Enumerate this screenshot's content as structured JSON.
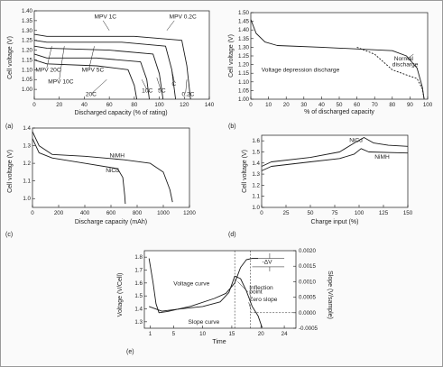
{
  "figure": {
    "border_color": "#9a9a9a",
    "background": "#fafafa",
    "line_color": "#1a1a1a"
  },
  "chart_data": [
    {
      "panel": "(a)",
      "type": "line",
      "ylabel": "Cell voltage (V)",
      "xlabel": "Discharged capacity (% of rating)",
      "xlim": [
        0,
        140
      ],
      "ylim": [
        0.95,
        1.4
      ],
      "xticks": [
        0,
        20,
        40,
        60,
        80,
        100,
        120,
        140
      ],
      "yticks": [
        1.0,
        1.05,
        1.1,
        1.15,
        1.2,
        1.25,
        1.3,
        1.35,
        1.4
      ],
      "grid": false,
      "series": [
        {
          "name": "20C",
          "points": [
            [
              0,
              1.15
            ],
            [
              10,
              1.13
            ],
            [
              50,
              1.12
            ],
            [
              75,
              1.1
            ],
            [
              80,
              1.02
            ],
            [
              82,
              0.95
            ]
          ]
        },
        {
          "name": "10C",
          "points": [
            [
              0,
              1.18
            ],
            [
              10,
              1.16
            ],
            [
              50,
              1.16
            ],
            [
              85,
              1.14
            ],
            [
              90,
              1.05
            ],
            [
              92,
              0.95
            ]
          ]
        },
        {
          "name": "5C",
          "points": [
            [
              0,
              1.22
            ],
            [
              10,
              1.21
            ],
            [
              60,
              1.2
            ],
            [
              95,
              1.18
            ],
            [
              100,
              1.08
            ],
            [
              103,
              0.95
            ]
          ]
        },
        {
          "name": "C",
          "points": [
            [
              0,
              1.25
            ],
            [
              10,
              1.24
            ],
            [
              70,
              1.24
            ],
            [
              105,
              1.22
            ],
            [
              110,
              1.1
            ],
            [
              113,
              0.95
            ]
          ]
        },
        {
          "name": "0.2C",
          "points": [
            [
              0,
              1.28
            ],
            [
              10,
              1.27
            ],
            [
              80,
              1.27
            ],
            [
              118,
              1.25
            ],
            [
              122,
              1.12
            ],
            [
              125,
              0.95
            ]
          ]
        }
      ],
      "labels": [
        {
          "text": "MPV 1C",
          "x": 48,
          "y": 1.36
        },
        {
          "text": "MPV 0.2C",
          "x": 108,
          "y": 1.36
        },
        {
          "text": "MPV 20C",
          "x": 1,
          "y": 1.09
        },
        {
          "text": "MPV 10C",
          "x": 11,
          "y": 1.03
        },
        {
          "text": "MPV 5C",
          "x": 38,
          "y": 1.09
        },
        {
          "text": "20C",
          "x": 41,
          "y": 0.965
        },
        {
          "text": "10C",
          "x": 86,
          "y": 0.985
        },
        {
          "text": "5C",
          "x": 99,
          "y": 0.985
        },
        {
          "text": "C",
          "x": 110,
          "y": 1.02
        },
        {
          "text": "0.2C",
          "x": 118,
          "y": 0.965
        }
      ]
    },
    {
      "panel": "(b)",
      "type": "line",
      "ylabel": "Cell voltage (V)",
      "xlabel": "% of discharged capacity",
      "xlim": [
        0,
        100
      ],
      "ylim": [
        1.0,
        1.5
      ],
      "xticks": [
        0,
        10,
        20,
        30,
        40,
        50,
        60,
        70,
        80,
        90,
        100
      ],
      "yticks": [
        1.0,
        1.05,
        1.1,
        1.15,
        1.2,
        1.25,
        1.3,
        1.35,
        1.4,
        1.45,
        1.5
      ],
      "grid": false,
      "series": [
        {
          "name": "Normal discharge",
          "points": [
            [
              0,
              1.46
            ],
            [
              3,
              1.38
            ],
            [
              8,
              1.33
            ],
            [
              15,
              1.31
            ],
            [
              40,
              1.3
            ],
            [
              80,
              1.28
            ],
            [
              88,
              1.25
            ],
            [
              94,
              1.18
            ],
            [
              97,
              1.07
            ],
            [
              98,
              1.0
            ]
          ]
        },
        {
          "name": "Voltage depression discharge",
          "points": [
            [
              60,
              1.3
            ],
            [
              65,
              1.28
            ],
            [
              70,
              1.26
            ],
            [
              80,
              1.17
            ],
            [
              88,
              1.14
            ],
            [
              94,
              1.12
            ],
            [
              97,
              1.06
            ],
            [
              98,
              1.0
            ]
          ]
        }
      ],
      "labels": [
        {
          "text": "Normal",
          "x": 81,
          "y": 1.225
        },
        {
          "text": "discharge",
          "x": 80,
          "y": 1.19
        },
        {
          "text": "Voltage depression discharge",
          "x": 6,
          "y": 1.16
        }
      ]
    },
    {
      "panel": "(c)",
      "type": "line",
      "ylabel": "Cell voltage (V)",
      "xlabel": "Discharge capacity (mAh)",
      "xlim": [
        0,
        1200
      ],
      "ylim": [
        0.95,
        1.4
      ],
      "xticks": [
        0,
        200,
        400,
        600,
        800,
        1000,
        1200
      ],
      "yticks": [
        1.0,
        1.1,
        1.2,
        1.3,
        1.4
      ],
      "grid": false,
      "series": [
        {
          "name": "NiMH",
          "points": [
            [
              0,
              1.38
            ],
            [
              50,
              1.3
            ],
            [
              150,
              1.25
            ],
            [
              400,
              1.24
            ],
            [
              700,
              1.22
            ],
            [
              900,
              1.2
            ],
            [
              1000,
              1.15
            ],
            [
              1050,
              1.05
            ],
            [
              1070,
              0.98
            ]
          ]
        },
        {
          "name": "NiCd",
          "points": [
            [
              0,
              1.34
            ],
            [
              50,
              1.26
            ],
            [
              150,
              1.23
            ],
            [
              400,
              1.2
            ],
            [
              650,
              1.17
            ],
            [
              690,
              1.12
            ],
            [
              705,
              1.02
            ],
            [
              710,
              0.97
            ]
          ]
        }
      ],
      "labels": [
        {
          "text": "NiMH",
          "x": 590,
          "y": 1.235
        },
        {
          "text": "NiCd",
          "x": 560,
          "y": 1.15
        }
      ]
    },
    {
      "panel": "(d)",
      "type": "line",
      "ylabel": "Cell voltage (V)",
      "xlabel": "Charge input (%)",
      "xlim": [
        0,
        150
      ],
      "ylim": [
        1.0,
        1.65
      ],
      "xticks": [
        0,
        25,
        50,
        75,
        100,
        125,
        150
      ],
      "yticks": [
        1.0,
        1.1,
        1.2,
        1.3,
        1.4,
        1.5,
        1.6
      ],
      "grid": false,
      "series": [
        {
          "name": "NiCd",
          "points": [
            [
              0,
              1.37
            ],
            [
              10,
              1.41
            ],
            [
              50,
              1.45
            ],
            [
              80,
              1.5
            ],
            [
              95,
              1.58
            ],
            [
              105,
              1.63
            ],
            [
              115,
              1.58
            ],
            [
              130,
              1.56
            ],
            [
              150,
              1.55
            ]
          ]
        },
        {
          "name": "NiMH",
          "points": [
            [
              0,
              1.33
            ],
            [
              10,
              1.37
            ],
            [
              50,
              1.41
            ],
            [
              80,
              1.44
            ],
            [
              95,
              1.48
            ],
            [
              102,
              1.53
            ],
            [
              110,
              1.5
            ],
            [
              150,
              1.49
            ]
          ]
        }
      ],
      "labels": [
        {
          "text": "NiCd",
          "x": 90,
          "y": 1.59
        },
        {
          "text": "NiMH",
          "x": 116,
          "y": 1.44
        }
      ]
    },
    {
      "panel": "(e)",
      "type": "line",
      "ylabel": "Voltage (V/Cell)",
      "y2label": "Slope (V/sample)",
      "xlabel": "Time",
      "xlim": [
        0,
        26
      ],
      "ylim": [
        1.25,
        1.85
      ],
      "y2lim": [
        -0.0005,
        0.002
      ],
      "xticks": [
        1,
        5,
        10,
        15,
        20,
        24
      ],
      "yticks": [
        1.3,
        1.4,
        1.5,
        1.6,
        1.7,
        1.8
      ],
      "y2ticks": [
        -0.0005,
        0,
        0.0005,
        0.001,
        0.0015,
        0.002
      ],
      "y2ticklabels": [
        "-0.0005",
        "0.0000",
        "0.0005",
        "0.0010",
        "0.0015",
        "0.0020"
      ],
      "grid": false,
      "series": [
        {
          "name": "Voltage curve",
          "axis": "left",
          "points": [
            [
              0.8,
              1.79
            ],
            [
              1.5,
              1.6
            ],
            [
              2.0,
              1.44
            ],
            [
              2.5,
              1.37
            ],
            [
              4,
              1.38
            ],
            [
              8,
              1.42
            ],
            [
              12,
              1.48
            ],
            [
              14,
              1.52
            ],
            [
              15.5,
              1.6
            ],
            [
              16.5,
              1.72
            ],
            [
              17.5,
              1.78
            ],
            [
              18.5,
              1.79
            ],
            [
              19.5,
              1.79
            ]
          ]
        },
        {
          "name": "Slope curve",
          "axis": "right",
          "points": [
            [
              0.8,
              0.0002
            ],
            [
              1.5,
              0.00015
            ],
            [
              3,
              5e-05
            ],
            [
              6,
              0.00012
            ],
            [
              10,
              0.0002
            ],
            [
              13,
              0.00035
            ],
            [
              14.5,
              0.00065
            ],
            [
              15.5,
              0.00118
            ],
            [
              16.5,
              0.0011
            ],
            [
              17.5,
              0.0007
            ],
            [
              18.5,
              0.0002
            ],
            [
              19.5,
              -0.0001
            ],
            [
              20.2,
              -0.00048
            ]
          ]
        }
      ],
      "labels": [
        {
          "text": "Voltage curve",
          "x": 5,
          "y": 1.58
        },
        {
          "text": "Slope curve",
          "x": 7.5,
          "y": 1.285
        },
        {
          "text": "-ΔV",
          "x": 20.2,
          "y": 1.75
        },
        {
          "text": "Inflection",
          "x": 18,
          "y": 1.55
        },
        {
          "text": "point",
          "x": 18,
          "y": 1.52
        },
        {
          "text": "Zero slope",
          "x": 18,
          "y": 1.46
        }
      ]
    }
  ]
}
